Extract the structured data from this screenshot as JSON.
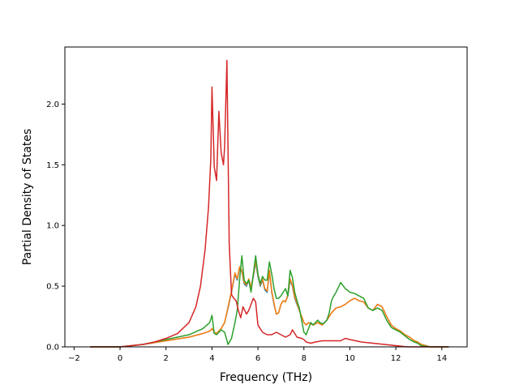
{
  "chart_data": {
    "type": "line",
    "title": "",
    "xlabel": "Frequency (THz)",
    "ylabel": "Partial Density of States",
    "xlim": [
      -2.4,
      15.1
    ],
    "ylim": [
      0.0,
      2.47
    ],
    "xticks": [
      -2,
      0,
      2,
      4,
      6,
      8,
      10,
      12,
      14
    ],
    "xtick_labels": [
      "−2",
      "0",
      "2",
      "4",
      "6",
      "8",
      "10",
      "12",
      "14"
    ],
    "yticks": [
      0.0,
      0.5,
      1.0,
      1.5,
      2.0
    ],
    "ytick_labels": [
      "0.0",
      "0.5",
      "1.0",
      "1.5",
      "2.0"
    ],
    "grid": false,
    "legend": "none",
    "series": [
      {
        "color": "#1f77b4",
        "x": [
          -1.3,
          0.0,
          1.0,
          2.0,
          3.0,
          3.6,
          3.9,
          4.0,
          4.1,
          4.2,
          4.4,
          4.55,
          4.7,
          4.85,
          5.0,
          5.1,
          5.2,
          5.3,
          5.4,
          5.5,
          5.6,
          5.7,
          5.8,
          5.9,
          6.0,
          6.1,
          6.2,
          6.3,
          6.4,
          6.5,
          6.6,
          6.7,
          6.8,
          6.9,
          7.0,
          7.1,
          7.2,
          7.3,
          7.4,
          7.5,
          7.6,
          7.7,
          7.8,
          7.9,
          8.0,
          8.1,
          8.2,
          8.3,
          8.4,
          8.5,
          8.6,
          8.7,
          8.8,
          8.9,
          9.0,
          9.1,
          9.2,
          9.3,
          9.4,
          9.6,
          9.8,
          10.0,
          10.2,
          10.4,
          10.6,
          10.8,
          11.0,
          11.2,
          11.3,
          11.4,
          11.6,
          11.8,
          12.0,
          12.2,
          12.4,
          12.6,
          12.8,
          12.95,
          13.1,
          13.5,
          14.3
        ],
        "y": [
          0.0,
          0.0,
          0.02,
          0.05,
          0.08,
          0.11,
          0.13,
          0.15,
          0.12,
          0.11,
          0.15,
          0.2,
          0.32,
          0.45,
          0.6,
          0.55,
          0.65,
          0.62,
          0.52,
          0.5,
          0.55,
          0.48,
          0.58,
          0.7,
          0.58,
          0.5,
          0.55,
          0.47,
          0.45,
          0.62,
          0.45,
          0.35,
          0.27,
          0.28,
          0.35,
          0.38,
          0.37,
          0.42,
          0.55,
          0.5,
          0.4,
          0.35,
          0.3,
          0.25,
          0.2,
          0.18,
          0.2,
          0.19,
          0.18,
          0.19,
          0.2,
          0.19,
          0.18,
          0.2,
          0.22,
          0.25,
          0.28,
          0.3,
          0.32,
          0.33,
          0.35,
          0.38,
          0.4,
          0.38,
          0.37,
          0.32,
          0.3,
          0.35,
          0.34,
          0.33,
          0.25,
          0.18,
          0.15,
          0.13,
          0.1,
          0.08,
          0.05,
          0.04,
          0.02,
          0.0,
          0.0
        ]
      },
      {
        "color": "#ff7f0e",
        "x": [
          -1.3,
          0.0,
          1.0,
          2.0,
          3.0,
          3.6,
          3.9,
          4.0,
          4.1,
          4.2,
          4.4,
          4.55,
          4.7,
          4.85,
          5.0,
          5.1,
          5.2,
          5.3,
          5.4,
          5.5,
          5.6,
          5.7,
          5.8,
          5.9,
          6.0,
          6.1,
          6.2,
          6.3,
          6.4,
          6.5,
          6.6,
          6.7,
          6.8,
          6.9,
          7.0,
          7.1,
          7.2,
          7.3,
          7.4,
          7.5,
          7.6,
          7.7,
          7.8,
          7.9,
          8.0,
          8.1,
          8.2,
          8.3,
          8.4,
          8.5,
          8.6,
          8.7,
          8.8,
          8.9,
          9.0,
          9.1,
          9.2,
          9.3,
          9.4,
          9.6,
          9.8,
          10.0,
          10.2,
          10.4,
          10.6,
          10.8,
          11.0,
          11.2,
          11.3,
          11.4,
          11.6,
          11.8,
          12.0,
          12.2,
          12.4,
          12.6,
          12.8,
          12.95,
          13.1,
          13.5,
          14.3
        ],
        "y": [
          0.0,
          0.0,
          0.02,
          0.05,
          0.08,
          0.11,
          0.13,
          0.15,
          0.12,
          0.11,
          0.15,
          0.2,
          0.33,
          0.46,
          0.61,
          0.56,
          0.66,
          0.63,
          0.53,
          0.51,
          0.56,
          0.49,
          0.59,
          0.71,
          0.59,
          0.51,
          0.56,
          0.48,
          0.46,
          0.63,
          0.46,
          0.36,
          0.27,
          0.28,
          0.35,
          0.38,
          0.37,
          0.43,
          0.56,
          0.51,
          0.41,
          0.36,
          0.3,
          0.25,
          0.2,
          0.18,
          0.2,
          0.19,
          0.18,
          0.19,
          0.2,
          0.19,
          0.18,
          0.2,
          0.22,
          0.25,
          0.28,
          0.3,
          0.32,
          0.33,
          0.35,
          0.38,
          0.4,
          0.38,
          0.37,
          0.32,
          0.3,
          0.35,
          0.34,
          0.33,
          0.25,
          0.18,
          0.15,
          0.13,
          0.1,
          0.08,
          0.05,
          0.04,
          0.02,
          0.0,
          0.0
        ]
      },
      {
        "color": "#2ca02c",
        "x": [
          -1.3,
          0.0,
          1.0,
          2.0,
          3.0,
          3.6,
          3.9,
          4.0,
          4.1,
          4.2,
          4.4,
          4.55,
          4.7,
          4.85,
          5.0,
          5.1,
          5.2,
          5.3,
          5.4,
          5.5,
          5.6,
          5.7,
          5.8,
          5.9,
          6.0,
          6.1,
          6.2,
          6.3,
          6.4,
          6.5,
          6.6,
          6.7,
          6.8,
          6.9,
          7.0,
          7.1,
          7.2,
          7.3,
          7.4,
          7.5,
          7.6,
          7.7,
          7.8,
          7.9,
          8.0,
          8.1,
          8.2,
          8.3,
          8.4,
          8.5,
          8.6,
          8.7,
          8.8,
          8.9,
          9.0,
          9.1,
          9.2,
          9.3,
          9.4,
          9.6,
          9.8,
          10.0,
          10.2,
          10.4,
          10.6,
          10.8,
          11.0,
          11.2,
          11.3,
          11.4,
          11.6,
          11.8,
          12.0,
          12.2,
          12.4,
          12.6,
          12.8,
          12.95,
          13.1,
          13.5,
          14.3
        ],
        "y": [
          0.0,
          0.0,
          0.02,
          0.06,
          0.1,
          0.15,
          0.2,
          0.26,
          0.11,
          0.1,
          0.14,
          0.12,
          0.02,
          0.07,
          0.2,
          0.3,
          0.55,
          0.75,
          0.55,
          0.52,
          0.55,
          0.45,
          0.6,
          0.75,
          0.6,
          0.52,
          0.58,
          0.55,
          0.55,
          0.7,
          0.6,
          0.48,
          0.4,
          0.4,
          0.42,
          0.45,
          0.48,
          0.42,
          0.63,
          0.57,
          0.45,
          0.38,
          0.32,
          0.22,
          0.12,
          0.1,
          0.15,
          0.2,
          0.18,
          0.2,
          0.22,
          0.2,
          0.19,
          0.2,
          0.22,
          0.28,
          0.38,
          0.42,
          0.45,
          0.53,
          0.48,
          0.45,
          0.44,
          0.42,
          0.4,
          0.32,
          0.3,
          0.32,
          0.31,
          0.3,
          0.22,
          0.16,
          0.14,
          0.12,
          0.09,
          0.06,
          0.04,
          0.03,
          0.01,
          0.0,
          0.0
        ]
      },
      {
        "color": "#d62728",
        "x": [
          -1.3,
          -0.5,
          0.0,
          0.5,
          1.0,
          1.5,
          2.0,
          2.5,
          3.0,
          3.3,
          3.5,
          3.7,
          3.85,
          3.95,
          4.0,
          4.1,
          4.2,
          4.3,
          4.4,
          4.5,
          4.55,
          4.65,
          4.75,
          4.85,
          4.95,
          5.05,
          5.15,
          5.25,
          5.35,
          5.5,
          5.6,
          5.8,
          5.9,
          6.0,
          6.2,
          6.4,
          6.6,
          6.8,
          7.0,
          7.2,
          7.3,
          7.4,
          7.5,
          7.7,
          7.9,
          8.0,
          8.1,
          8.3,
          8.5,
          8.8,
          9.0,
          9.3,
          9.6,
          9.8,
          10.0,
          10.5,
          11.0,
          11.5,
          12.0,
          12.5,
          13.0,
          13.5,
          14.3
        ],
        "y": [
          0.0,
          0.0,
          0.0,
          0.01,
          0.02,
          0.04,
          0.07,
          0.11,
          0.2,
          0.33,
          0.5,
          0.8,
          1.15,
          1.55,
          2.14,
          1.48,
          1.37,
          1.94,
          1.6,
          1.5,
          1.65,
          2.36,
          0.85,
          0.43,
          0.4,
          0.38,
          0.3,
          0.24,
          0.33,
          0.27,
          0.3,
          0.4,
          0.37,
          0.18,
          0.12,
          0.1,
          0.1,
          0.12,
          0.1,
          0.08,
          0.09,
          0.1,
          0.14,
          0.08,
          0.07,
          0.06,
          0.04,
          0.03,
          0.04,
          0.05,
          0.05,
          0.05,
          0.05,
          0.07,
          0.06,
          0.04,
          0.03,
          0.02,
          0.01,
          0.0,
          0.0,
          0.0,
          0.0
        ]
      }
    ]
  }
}
